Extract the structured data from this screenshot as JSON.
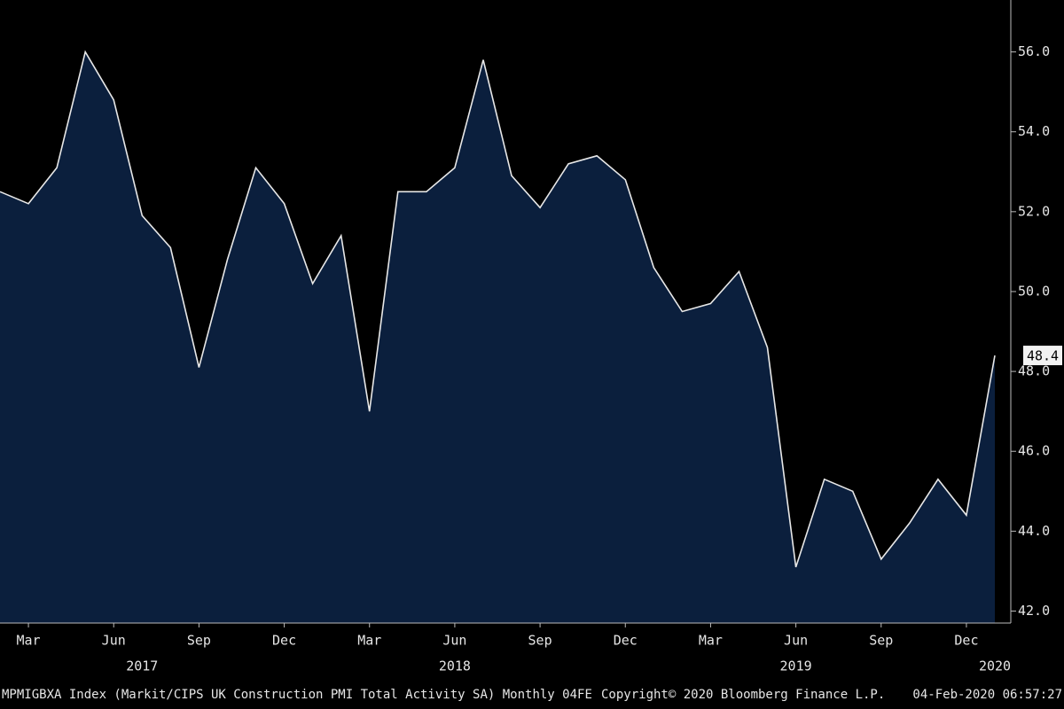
{
  "chart_data": {
    "type": "area",
    "x": [
      "2017-02",
      "2017-03",
      "2017-04",
      "2017-05",
      "2017-06",
      "2017-07",
      "2017-08",
      "2017-09",
      "2017-10",
      "2017-11",
      "2017-12",
      "2018-01",
      "2018-02",
      "2018-03",
      "2018-04",
      "2018-05",
      "2018-06",
      "2018-07",
      "2018-08",
      "2018-09",
      "2018-10",
      "2018-11",
      "2018-12",
      "2019-01",
      "2019-02",
      "2019-03",
      "2019-04",
      "2019-05",
      "2019-06",
      "2019-07",
      "2019-08",
      "2019-09",
      "2019-10",
      "2019-11",
      "2019-12",
      "2020-01"
    ],
    "values": [
      52.5,
      52.2,
      53.1,
      56.0,
      54.8,
      51.9,
      51.1,
      48.1,
      50.8,
      53.1,
      52.2,
      50.2,
      51.4,
      47.0,
      52.5,
      52.5,
      53.1,
      55.8,
      52.9,
      52.1,
      53.2,
      53.4,
      52.8,
      50.6,
      49.5,
      49.7,
      50.5,
      48.6,
      43.1,
      45.3,
      45.0,
      43.3,
      44.2,
      45.3,
      44.4,
      48.4
    ],
    "color": "#0b1f3d",
    "line_color": "#e8e8e8",
    "ylim": [
      41.7,
      57.3
    ],
    "yticks": [
      {
        "value": 42,
        "label": "42.0"
      },
      {
        "value": 44,
        "label": "44.0"
      },
      {
        "value": 46,
        "label": "46.0"
      },
      {
        "value": 48,
        "label": "48.0"
      },
      {
        "value": 50,
        "label": "50.0"
      },
      {
        "value": 52,
        "label": "52.0"
      },
      {
        "value": 54,
        "label": "54.0"
      },
      {
        "value": 56,
        "label": "56.0"
      }
    ],
    "xticks": [
      {
        "value": "2017-03",
        "label": "Mar"
      },
      {
        "value": "2017-06",
        "label": "Jun"
      },
      {
        "value": "2017-09",
        "label": "Sep"
      },
      {
        "value": "2017-12",
        "label": "Dec"
      },
      {
        "value": "2018-03",
        "label": "Mar"
      },
      {
        "value": "2018-06",
        "label": "Jun"
      },
      {
        "value": "2018-09",
        "label": "Sep"
      },
      {
        "value": "2018-12",
        "label": "Dec"
      },
      {
        "value": "2019-03",
        "label": "Mar"
      },
      {
        "value": "2019-06",
        "label": "Jun"
      },
      {
        "value": "2019-09",
        "label": "Sep"
      },
      {
        "value": "2019-12",
        "label": "Dec"
      }
    ],
    "year_labels": [
      {
        "value": "2017-07",
        "label": "2017"
      },
      {
        "value": "2018-06",
        "label": "2018"
      },
      {
        "value": "2019-06",
        "label": "2019"
      },
      {
        "value": "2020-01",
        "label": "2020"
      }
    ],
    "footer": {
      "left": "MPMIGBXA Index (Markit/CIPS UK Construction PMI Total Activity SA)  Monthly 04FE",
      "center": "Copyright© 2020 Bloomberg Finance L.P.",
      "right": "04-Feb-2020 06:57:27"
    }
  }
}
